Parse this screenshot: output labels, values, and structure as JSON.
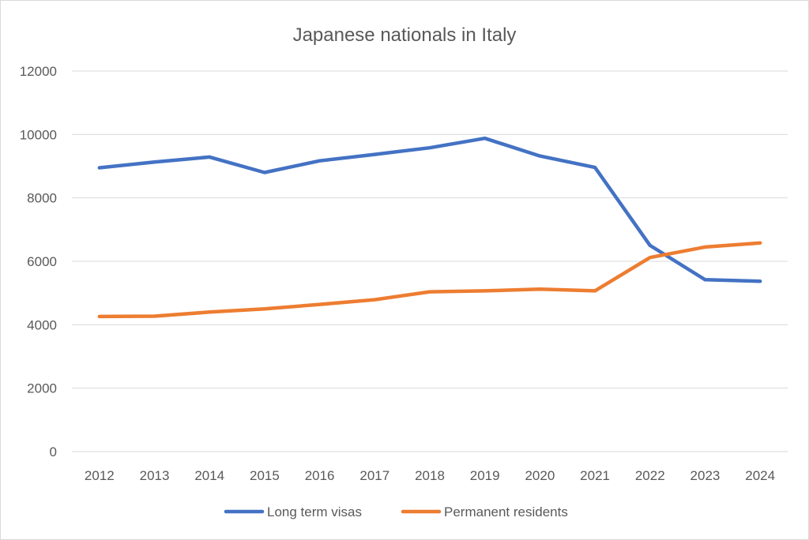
{
  "chart_data": {
    "type": "line",
    "title": "Japanese nationals in Italy",
    "xlabel": "",
    "ylabel": "",
    "categories": [
      "2012",
      "2013",
      "2014",
      "2015",
      "2016",
      "2017",
      "2018",
      "2019",
      "2020",
      "2021",
      "2022",
      "2023",
      "2024"
    ],
    "ylim": [
      0,
      12000
    ],
    "yticks": [
      0,
      2000,
      4000,
      6000,
      8000,
      10000,
      12000
    ],
    "grid": true,
    "legend_position": "bottom",
    "series": [
      {
        "name": "Long term visas",
        "color": "#4472c4",
        "values": [
          8950,
          9130,
          9290,
          8800,
          9170,
          9370,
          9580,
          9880,
          9320,
          8960,
          6500,
          5420,
          5370
        ]
      },
      {
        "name": "Permanent residents",
        "color": "#ed7d31",
        "values": [
          4260,
          4270,
          4400,
          4500,
          4640,
          4790,
          5040,
          5070,
          5120,
          5070,
          6120,
          6450,
          6580
        ]
      }
    ]
  }
}
